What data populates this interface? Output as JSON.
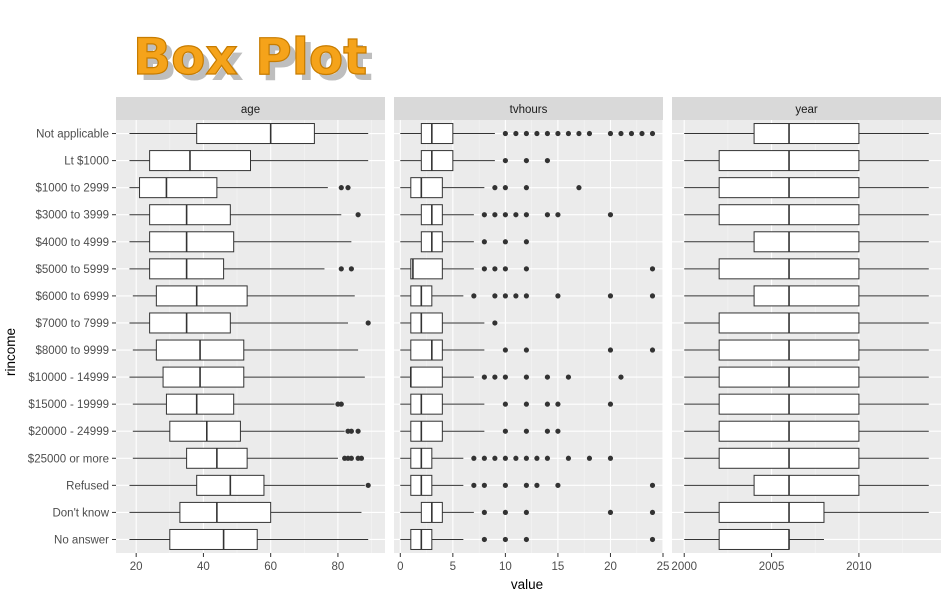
{
  "chart_data": {
    "type": "boxplot",
    "title": "Box Plot",
    "xlabel": "value",
    "ylabel": "rincome",
    "grid": true,
    "categories": [
      "Not applicable",
      "Lt $1000",
      "$1000 to 2999",
      "$3000 to 3999",
      "$4000 to 4999",
      "$5000 to 5999",
      "$6000 to 6999",
      "$7000 to 7999",
      "$8000 to 9999",
      "$10000 - 14999",
      "$15000 - 19999",
      "$20000 - 24999",
      "$25000 or more",
      "Refused",
      "Don't know",
      "No answer"
    ],
    "panels": [
      {
        "name": "age",
        "xlim": [
          14,
          94
        ],
        "ticks": [
          20,
          40,
          60,
          80
        ],
        "tick_labels": [
          "20",
          "40",
          "60",
          "80"
        ],
        "boxes": [
          {
            "whisker_low": 18,
            "q1": 38,
            "median": 60,
            "q3": 73,
            "whisker_high": 89,
            "outliers": []
          },
          {
            "whisker_low": 18,
            "q1": 24,
            "median": 36,
            "q3": 54,
            "whisker_high": 89,
            "outliers": []
          },
          {
            "whisker_low": 18,
            "q1": 21,
            "median": 29,
            "q3": 44,
            "whisker_high": 77,
            "outliers": [
              81,
              83
            ]
          },
          {
            "whisker_low": 18,
            "q1": 24,
            "median": 35,
            "q3": 48,
            "whisker_high": 81,
            "outliers": [
              86
            ]
          },
          {
            "whisker_low": 18,
            "q1": 24,
            "median": 35,
            "q3": 49,
            "whisker_high": 84,
            "outliers": []
          },
          {
            "whisker_low": 18,
            "q1": 24,
            "median": 35,
            "q3": 46,
            "whisker_high": 76,
            "outliers": [
              81,
              84
            ]
          },
          {
            "whisker_low": 19,
            "q1": 26,
            "median": 38,
            "q3": 53,
            "whisker_high": 85,
            "outliers": []
          },
          {
            "whisker_low": 18,
            "q1": 24,
            "median": 35,
            "q3": 48,
            "whisker_high": 83,
            "outliers": [
              89
            ]
          },
          {
            "whisker_low": 19,
            "q1": 26,
            "median": 39,
            "q3": 52,
            "whisker_high": 86,
            "outliers": []
          },
          {
            "whisker_low": 18,
            "q1": 28,
            "median": 39,
            "q3": 52,
            "whisker_high": 88,
            "outliers": []
          },
          {
            "whisker_low": 19,
            "q1": 29,
            "median": 38,
            "q3": 49,
            "whisker_high": 79,
            "outliers": [
              80,
              81
            ]
          },
          {
            "whisker_low": 19,
            "q1": 30,
            "median": 41,
            "q3": 51,
            "whisker_high": 82,
            "outliers": [
              83,
              84,
              86
            ]
          },
          {
            "whisker_low": 19,
            "q1": 35,
            "median": 44,
            "q3": 53,
            "whisker_high": 80,
            "outliers": [
              82,
              83,
              84,
              86,
              87
            ]
          },
          {
            "whisker_low": 18,
            "q1": 38,
            "median": 48,
            "q3": 58,
            "whisker_high": 88,
            "outliers": [
              89
            ]
          },
          {
            "whisker_low": 18,
            "q1": 33,
            "median": 44,
            "q3": 60,
            "whisker_high": 87,
            "outliers": []
          },
          {
            "whisker_low": 18,
            "q1": 30,
            "median": 46,
            "q3": 56,
            "whisker_high": 89,
            "outliers": []
          }
        ]
      },
      {
        "name": "tvhours",
        "xlim": [
          -0.6,
          25
        ],
        "ticks": [
          0,
          5,
          10,
          15,
          20,
          25
        ],
        "tick_labels": [
          "0",
          "5",
          "10",
          "15",
          "20",
          "25"
        ],
        "boxes": [
          {
            "whisker_low": 0,
            "q1": 2,
            "median": 3,
            "q3": 5,
            "whisker_high": 9,
            "outliers": [
              10,
              11,
              12,
              13,
              14,
              15,
              16,
              17,
              18,
              20,
              21,
              22,
              23,
              24
            ]
          },
          {
            "whisker_low": 0,
            "q1": 2,
            "median": 3,
            "q3": 5,
            "whisker_high": 9,
            "outliers": [
              10,
              12,
              14
            ]
          },
          {
            "whisker_low": 0,
            "q1": 1,
            "median": 2,
            "q3": 4,
            "whisker_high": 8,
            "outliers": [
              9,
              10,
              12,
              17
            ]
          },
          {
            "whisker_low": 0,
            "q1": 2,
            "median": 3,
            "q3": 4,
            "whisker_high": 7,
            "outliers": [
              8,
              9,
              10,
              11,
              12,
              14,
              15,
              20
            ]
          },
          {
            "whisker_low": 0,
            "q1": 2,
            "median": 3,
            "q3": 4,
            "whisker_high": 7,
            "outliers": [
              8,
              10,
              12
            ]
          },
          {
            "whisker_low": 0,
            "q1": 1,
            "median": 1.2,
            "q3": 4,
            "whisker_high": 7,
            "outliers": [
              8,
              9,
              10,
              12,
              24
            ]
          },
          {
            "whisker_low": 0,
            "q1": 1,
            "median": 2,
            "q3": 3,
            "whisker_high": 6,
            "outliers": [
              7,
              9,
              10,
              11,
              12,
              15,
              20,
              24
            ]
          },
          {
            "whisker_low": 0,
            "q1": 1,
            "median": 2,
            "q3": 4,
            "whisker_high": 8,
            "outliers": [
              9
            ]
          },
          {
            "whisker_low": 0,
            "q1": 1,
            "median": 3,
            "q3": 4,
            "whisker_high": 8,
            "outliers": [
              10,
              12,
              20,
              24
            ]
          },
          {
            "whisker_low": 0,
            "q1": 1,
            "median": 1,
            "q3": 4,
            "whisker_high": 7,
            "outliers": [
              8,
              9,
              10,
              12,
              14,
              16,
              21
            ]
          },
          {
            "whisker_low": 0,
            "q1": 1,
            "median": 2,
            "q3": 4,
            "whisker_high": 8,
            "outliers": [
              10,
              12,
              14,
              15,
              20
            ]
          },
          {
            "whisker_low": 0,
            "q1": 1,
            "median": 2,
            "q3": 4,
            "whisker_high": 8,
            "outliers": [
              10,
              12,
              14,
              15
            ]
          },
          {
            "whisker_low": 0,
            "q1": 1,
            "median": 2,
            "q3": 3,
            "whisker_high": 6,
            "outliers": [
              7,
              8,
              9,
              10,
              11,
              12,
              13,
              14,
              16,
              18,
              20
            ]
          },
          {
            "whisker_low": 0,
            "q1": 1,
            "median": 2,
            "q3": 3,
            "whisker_high": 6,
            "outliers": [
              7,
              8,
              10,
              12,
              13,
              15,
              24
            ]
          },
          {
            "whisker_low": 0,
            "q1": 2,
            "median": 3,
            "q3": 4,
            "whisker_high": 7,
            "outliers": [
              8,
              10,
              12,
              20,
              24
            ]
          },
          {
            "whisker_low": 0,
            "q1": 1,
            "median": 2,
            "q3": 3,
            "whisker_high": 6,
            "outliers": [
              8,
              10,
              12,
              24
            ]
          }
        ]
      },
      {
        "name": "year",
        "xlim": [
          1999.3,
          2014.7
        ],
        "ticks": [
          2000,
          2005,
          2010
        ],
        "tick_labels": [
          "2000",
          "2005",
          "2010"
        ],
        "boxes": [
          {
            "whisker_low": 2000,
            "q1": 2004,
            "median": 2006,
            "q3": 2010,
            "whisker_high": 2014,
            "outliers": []
          },
          {
            "whisker_low": 2000,
            "q1": 2002,
            "median": 2006,
            "q3": 2010,
            "whisker_high": 2014,
            "outliers": []
          },
          {
            "whisker_low": 2000,
            "q1": 2002,
            "median": 2006,
            "q3": 2010,
            "whisker_high": 2014,
            "outliers": []
          },
          {
            "whisker_low": 2000,
            "q1": 2002,
            "median": 2006,
            "q3": 2010,
            "whisker_high": 2014,
            "outliers": []
          },
          {
            "whisker_low": 2000,
            "q1": 2004,
            "median": 2006,
            "q3": 2010,
            "whisker_high": 2014,
            "outliers": []
          },
          {
            "whisker_low": 2000,
            "q1": 2002,
            "median": 2006,
            "q3": 2010,
            "whisker_high": 2014,
            "outliers": []
          },
          {
            "whisker_low": 2000,
            "q1": 2004,
            "median": 2006,
            "q3": 2010,
            "whisker_high": 2014,
            "outliers": []
          },
          {
            "whisker_low": 2000,
            "q1": 2002,
            "median": 2006,
            "q3": 2010,
            "whisker_high": 2014,
            "outliers": []
          },
          {
            "whisker_low": 2000,
            "q1": 2002,
            "median": 2006,
            "q3": 2010,
            "whisker_high": 2014,
            "outliers": []
          },
          {
            "whisker_low": 2000,
            "q1": 2002,
            "median": 2006,
            "q3": 2010,
            "whisker_high": 2014,
            "outliers": []
          },
          {
            "whisker_low": 2000,
            "q1": 2002,
            "median": 2006,
            "q3": 2010,
            "whisker_high": 2014,
            "outliers": []
          },
          {
            "whisker_low": 2000,
            "q1": 2002,
            "median": 2006,
            "q3": 2010,
            "whisker_high": 2014,
            "outliers": []
          },
          {
            "whisker_low": 2000,
            "q1": 2002,
            "median": 2006,
            "q3": 2010,
            "whisker_high": 2014,
            "outliers": []
          },
          {
            "whisker_low": 2000,
            "q1": 2004,
            "median": 2006,
            "q3": 2010,
            "whisker_high": 2014,
            "outliers": []
          },
          {
            "whisker_low": 2000,
            "q1": 2002,
            "median": 2006,
            "q3": 2008,
            "whisker_high": 2014,
            "outliers": []
          },
          {
            "whisker_low": 2000,
            "q1": 2002,
            "median": 2006,
            "q3": 2006,
            "whisker_high": 2008,
            "outliers": []
          }
        ]
      }
    ]
  },
  "colors": {
    "panel_background": "#ebebeb",
    "strip_background": "#d9d9d9",
    "title_fill": "#f5a31a",
    "box_fill": "#ffffff",
    "box_stroke": "#333333",
    "outlier": "#333333"
  }
}
